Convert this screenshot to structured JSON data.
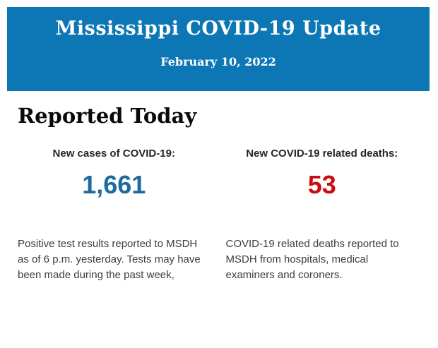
{
  "header": {
    "title": "Mississippi COVID-19 Update",
    "date": "February 10, 2022",
    "background_color": "#0d76b5",
    "text_color": "#ffffff"
  },
  "section": {
    "heading": "Reported Today"
  },
  "stats": {
    "cases": {
      "label": "New cases of COVID-19:",
      "value": "1,661",
      "value_color": "#1b6c9e",
      "description": "Positive test results reported to MSDH as of 6 p.m. yesterday. Tests may have been made during the past week,"
    },
    "deaths": {
      "label": "New COVID-19 related deaths:",
      "value": "53",
      "value_color": "#c90c0e",
      "description": "COVID-19 related deaths reported to MSDH from hospitals, medical examiners and coroners."
    }
  }
}
